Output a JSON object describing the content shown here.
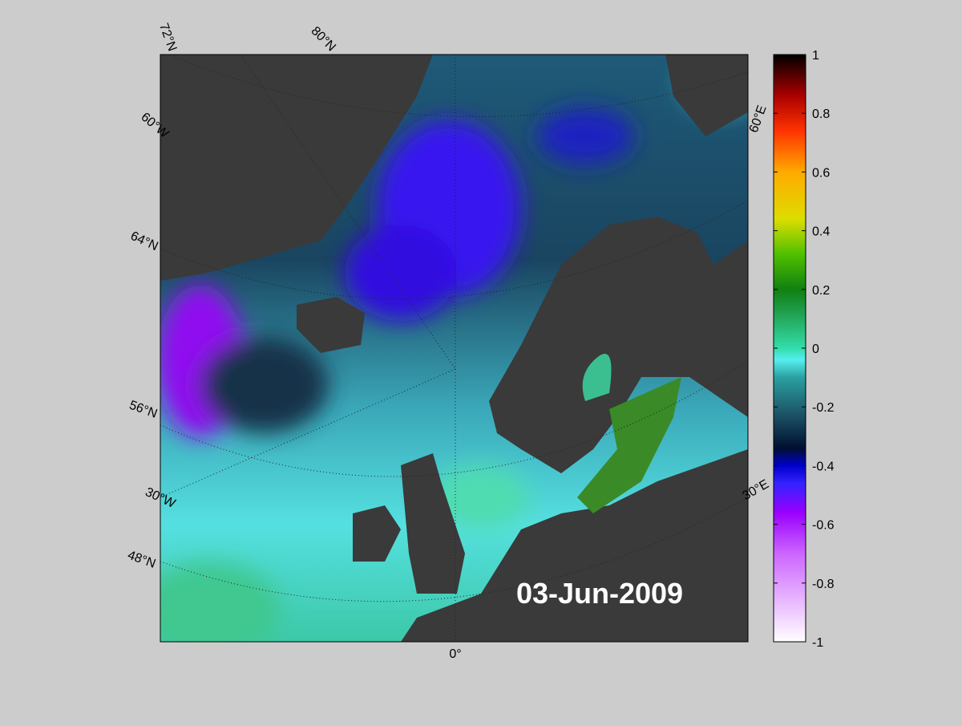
{
  "map": {
    "date_label": "03-Jun-2009",
    "graticule_labels": [
      "72°N",
      "80°N",
      "60°W",
      "64°N",
      "56°N",
      "30°W",
      "48°N",
      "0°",
      "60°E",
      "30°E"
    ]
  },
  "colorbar": {
    "lim": [
      -1,
      1
    ],
    "ticks": [
      -1,
      -0.8,
      -0.6,
      -0.4,
      -0.2,
      0,
      0.2,
      0.4,
      0.6,
      0.8,
      1
    ]
  }
}
